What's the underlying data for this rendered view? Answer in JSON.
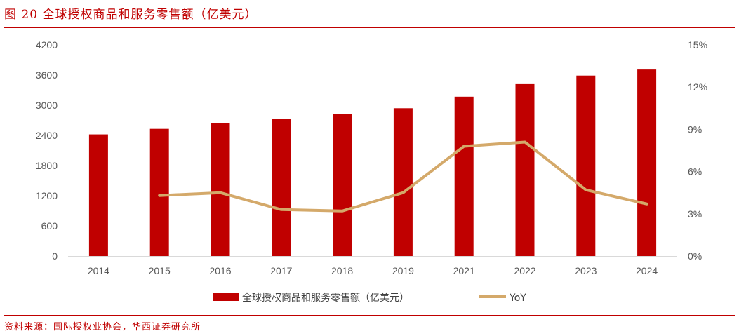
{
  "header": {
    "title": "图 20    全球授权商品和服务零售额（亿美元）"
  },
  "footer": {
    "source": "资料来源：国际授权业协会，华西证券研究所"
  },
  "colors": {
    "bar": "#c00000",
    "line": "#d4a96a",
    "accent": "#c00000"
  },
  "chart_data": {
    "type": "bar",
    "categories": [
      "2014",
      "2015",
      "2016",
      "2017",
      "2018",
      "2019",
      "2021",
      "2022",
      "2023",
      "2024"
    ],
    "series": [
      {
        "name": "全球授权商品和服务零售额（亿美元）",
        "type": "bar",
        "axis": "left",
        "values": [
          2420,
          2530,
          2640,
          2730,
          2820,
          2940,
          3170,
          3420,
          3590,
          3710
        ]
      },
      {
        "name": "YoY",
        "type": "line",
        "axis": "right",
        "values": [
          null,
          4.3,
          4.5,
          3.3,
          3.2,
          4.5,
          7.8,
          8.1,
          4.7,
          3.7
        ]
      }
    ],
    "y_left": {
      "min": 0,
      "max": 4200,
      "ticks": [
        "0",
        "600",
        "1200",
        "1800",
        "2400",
        "3000",
        "3600",
        "4200"
      ]
    },
    "y_right": {
      "min": 0,
      "max": 15,
      "ticks": [
        "0%",
        "3%",
        "6%",
        "9%",
        "12%",
        "15%"
      ]
    },
    "grid": false,
    "legend_position": "bottom"
  }
}
